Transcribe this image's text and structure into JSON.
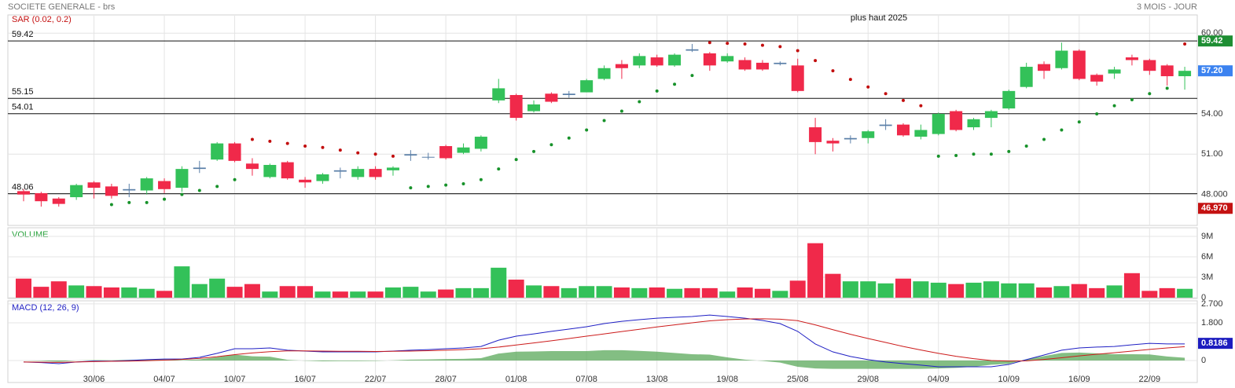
{
  "header": {
    "title": "SOCIETE GENERALE - brs",
    "period": "3 MOIS - JOUR"
  },
  "chart_data": [
    {
      "type": "candlestick",
      "categories": [
        null,
        null,
        null,
        null,
        "30/06",
        null,
        null,
        null,
        "04/07",
        null,
        null,
        null,
        "10/07",
        null,
        null,
        null,
        "16/07",
        null,
        null,
        null,
        "22/07",
        null,
        null,
        null,
        "28/07",
        null,
        null,
        null,
        "01/08",
        null,
        null,
        null,
        "07/08",
        null,
        null,
        null,
        "13/08",
        null,
        null,
        null,
        "19/08",
        null,
        null,
        null,
        "25/08",
        null,
        null,
        null,
        "29/08",
        null,
        null,
        null,
        "04/09",
        null,
        null,
        null,
        "10/09",
        null,
        null,
        null,
        "16/09",
        null,
        null,
        null,
        "22/09",
        null,
        null
      ],
      "open": [
        48.25,
        48.1,
        47.7,
        47.8,
        48.9,
        48.6,
        48.3,
        48.3,
        49.0,
        48.5,
        49.9,
        50.6,
        51.8,
        50.3,
        49.3,
        50.4,
        49.1,
        49.0,
        49.8,
        49.3,
        49.9,
        49.8,
        50.9,
        50.8,
        51.6,
        51.1,
        51.4,
        55.0,
        55.4,
        54.2,
        55.5,
        55.4,
        55.6,
        56.6,
        57.7,
        57.6,
        58.2,
        57.6,
        58.8,
        58.5,
        57.9,
        58.0,
        57.8,
        57.7,
        57.6,
        53.0,
        52.0,
        52.1,
        52.2,
        53.1,
        53.2,
        52.3,
        52.5,
        54.2,
        53.0,
        53.7,
        54.4,
        56.0,
        57.7,
        57.4,
        58.7,
        56.9,
        57.0,
        58.2,
        58.0,
        57.6,
        56.8
      ],
      "high": [
        48.4,
        48.2,
        47.8,
        48.8,
        49.0,
        48.8,
        48.8,
        49.3,
        49.2,
        50.1,
        50.5,
        51.9,
        51.9,
        50.7,
        50.3,
        50.5,
        49.3,
        49.6,
        50.0,
        50.1,
        50.1,
        50.1,
        51.3,
        51.1,
        51.7,
        51.8,
        52.4,
        56.6,
        55.5,
        55.0,
        55.6,
        55.7,
        56.6,
        57.6,
        58.0,
        58.5,
        58.4,
        58.5,
        59.2,
        58.6,
        58.5,
        58.2,
        58.0,
        57.9,
        58.1,
        53.7,
        52.2,
        52.4,
        52.8,
        53.6,
        53.3,
        53.2,
        54.1,
        54.3,
        53.7,
        54.3,
        55.8,
        57.8,
        57.9,
        59.3,
        58.8,
        57.0,
        57.5,
        58.4,
        58.1,
        57.7,
        57.5
      ],
      "low": [
        47.5,
        47.1,
        47.1,
        47.6,
        47.7,
        47.7,
        47.8,
        48.0,
        48.1,
        48.2,
        49.6,
        50.5,
        50.4,
        49.4,
        49.2,
        49.1,
        48.5,
        48.8,
        49.2,
        49.1,
        49.1,
        49.4,
        50.5,
        50.6,
        50.6,
        51.0,
        51.2,
        54.8,
        53.5,
        54.1,
        54.8,
        55.2,
        55.6,
        56.5,
        56.6,
        57.4,
        57.5,
        57.5,
        58.6,
        57.2,
        57.8,
        57.2,
        57.2,
        57.6,
        55.6,
        51.0,
        51.2,
        51.8,
        51.8,
        52.8,
        52.3,
        52.1,
        52.4,
        52.7,
        52.8,
        53.0,
        54.3,
        55.9,
        56.6,
        57.3,
        56.5,
        56.1,
        56.6,
        57.6,
        56.9,
        56.1,
        55.8
      ],
      "close": [
        48.0,
        47.5,
        47.3,
        48.7,
        48.5,
        47.9,
        48.4,
        49.2,
        48.4,
        49.9,
        50.0,
        51.8,
        50.5,
        49.9,
        50.2,
        49.2,
        48.9,
        49.5,
        49.7,
        49.9,
        49.3,
        50.0,
        51.0,
        50.8,
        50.7,
        51.5,
        52.3,
        55.9,
        53.7,
        54.7,
        54.9,
        55.5,
        56.5,
        57.4,
        57.4,
        58.3,
        57.6,
        58.4,
        58.7,
        57.6,
        58.3,
        57.3,
        57.3,
        57.8,
        55.7,
        51.9,
        51.8,
        52.2,
        52.7,
        53.2,
        52.4,
        52.8,
        54.0,
        52.8,
        53.6,
        54.2,
        55.7,
        57.5,
        57.2,
        58.7,
        56.6,
        56.4,
        57.3,
        58.0,
        57.2,
        56.8,
        57.2
      ],
      "up_color": "#33c159",
      "down_color": "#f0294a",
      "overlay": {
        "name": "SAR (0.02, 0.2)",
        "up_color": "#17922a",
        "down_color": "#c20d0d",
        "values": [
          null,
          null,
          null,
          null,
          null,
          47.25,
          47.4,
          47.4,
          47.65,
          48.0,
          48.3,
          48.6,
          49.1,
          52.1,
          51.96,
          51.8,
          51.6,
          51.5,
          51.3,
          51.1,
          51.0,
          50.85,
          48.5,
          48.6,
          48.7,
          48.8,
          49.1,
          49.9,
          50.6,
          51.2,
          51.7,
          52.2,
          52.8,
          53.5,
          54.2,
          54.9,
          55.7,
          56.2,
          56.85,
          59.3,
          59.25,
          59.2,
          59.1,
          59.0,
          58.7,
          57.96,
          57.2,
          56.56,
          56.0,
          55.5,
          55.0,
          54.6,
          50.85,
          50.9,
          51.0,
          51.0,
          51.2,
          51.6,
          52.1,
          52.8,
          53.4,
          54.0,
          54.6,
          55.05,
          55.5,
          55.9,
          59.2
        ]
      },
      "ylim": [
        45.7,
        61.3
      ],
      "yticks": [
        {
          "value": 48,
          "label": "48.000"
        },
        {
          "value": 51,
          "label": "51.00"
        },
        {
          "value": 54,
          "label": "54.00"
        },
        {
          "value": 60,
          "label": "60.00"
        }
      ],
      "levels": [
        59.42,
        55.15,
        54.01,
        48.06
      ],
      "annotation": "plus haut 2025",
      "markers": [
        {
          "value": 59.42,
          "color": "#1e8e33"
        },
        {
          "value": 57.2,
          "label": "57.20",
          "color": "#3b82f0"
        },
        {
          "value": 46.97,
          "label": "46.970",
          "color": "#c41212"
        }
      ],
      "grid": true
    },
    {
      "type": "bar",
      "title": "VOLUME",
      "values": [
        2800000,
        1600000,
        2400000,
        1800000,
        1700000,
        1500000,
        1500000,
        1300000,
        1000000,
        4600000,
        2000000,
        2800000,
        1600000,
        2000000,
        900000,
        1700000,
        1700000,
        900000,
        900000,
        900000,
        900000,
        1500000,
        1600000,
        900000,
        1200000,
        1400000,
        1400000,
        4400000,
        2650000,
        1800000,
        1700000,
        1400000,
        1700000,
        1700000,
        1500000,
        1400000,
        1500000,
        1300000,
        1400000,
        1400000,
        900000,
        1500000,
        1300000,
        1000000,
        2500000,
        8000000,
        3500000,
        2400000,
        2400000,
        2100000,
        2800000,
        2400000,
        2200000,
        2000000,
        2200000,
        2400000,
        2100000,
        2100000,
        1500000,
        1700000,
        2000000,
        1400000,
        1800000,
        3600000,
        1000000,
        1400000,
        1300000
      ],
      "ylim": [
        0,
        10150000
      ],
      "yticks": [
        0,
        {
          "value": 3000000,
          "label": "3M"
        },
        {
          "value": 6000000,
          "label": "6M"
        },
        {
          "value": 9000000,
          "label": "9M"
        }
      ],
      "grid": true
    },
    {
      "type": "line",
      "title": "MACD (12, 26, 9)",
      "series": [
        {
          "color": "#1f1fc4",
          "values": [
            -0.07,
            -0.1,
            -0.15,
            -0.07,
            -0.03,
            -0.03,
            0,
            0.04,
            0.07,
            0.07,
            0.15,
            0.34,
            0.56,
            0.56,
            0.6,
            0.49,
            0.45,
            0.41,
            0.41,
            0.41,
            0.41,
            0.45,
            0.49,
            0.52,
            0.56,
            0.6,
            0.67,
            0.97,
            1.16,
            1.27,
            1.39,
            1.5,
            1.61,
            1.76,
            1.87,
            1.95,
            2.02,
            2.06,
            2.1,
            2.17,
            2.1,
            2.02,
            1.91,
            1.76,
            1.39,
            0.79,
            0.41,
            0.19,
            0.04,
            -0.07,
            -0.15,
            -0.22,
            -0.3,
            -0.3,
            -0.3,
            -0.3,
            -0.19,
            0.04,
            0.26,
            0.49,
            0.6,
            0.64,
            0.67,
            0.75,
            0.82,
            0.79,
            0.79
          ]
        },
        {
          "color": "#cc1b1b",
          "values": [
            -0.07,
            -0.08,
            -0.09,
            -0.07,
            -0.05,
            -0.04,
            -0.03,
            -0.01,
            0.02,
            0.05,
            0.1,
            0.18,
            0.28,
            0.36,
            0.42,
            0.46,
            0.46,
            0.45,
            0.44,
            0.44,
            0.43,
            0.44,
            0.45,
            0.47,
            0.49,
            0.52,
            0.56,
            0.64,
            0.74,
            0.84,
            0.94,
            1.05,
            1.16,
            1.27,
            1.38,
            1.49,
            1.6,
            1.7,
            1.8,
            1.89,
            1.95,
            1.98,
            1.99,
            1.97,
            1.9,
            1.7,
            1.47,
            1.25,
            1.05,
            0.86,
            0.67,
            0.5,
            0.34,
            0.2,
            0.09,
            0.0,
            -0.03,
            -0.02,
            0.05,
            0.13,
            0.22,
            0.3,
            0.37,
            0.45,
            0.53,
            0.6,
            0.66
          ]
        }
      ],
      "histogram": {
        "color": "#5aa85a",
        "values": [
          0,
          -0.02,
          -0.06,
          0,
          0.02,
          0.01,
          0.03,
          0.05,
          0.05,
          0.02,
          0.05,
          0.16,
          0.28,
          0.2,
          0.18,
          0.03,
          -0.01,
          -0.04,
          -0.03,
          -0.03,
          -0.02,
          0.01,
          0.04,
          0.05,
          0.07,
          0.08,
          0.11,
          0.33,
          0.42,
          0.43,
          0.45,
          0.45,
          0.45,
          0.49,
          0.49,
          0.46,
          0.42,
          0.36,
          0.3,
          0.28,
          0.15,
          0.04,
          -0.02,
          -0.1,
          -0.3,
          -0.38,
          -0.4,
          -0.4,
          -0.4,
          -0.4,
          -0.4,
          -0.4,
          -0.38,
          -0.35,
          -0.3,
          -0.2,
          -0.16,
          0.06,
          0.21,
          0.36,
          0.38,
          0.34,
          0.3,
          0.3,
          0.29,
          0.19,
          0.13
        ]
      },
      "ylim": [
        -1.05,
        2.81
      ],
      "yticks": [
        0,
        {
          "value": 1.8,
          "label": "1.800"
        },
        {
          "value": 2.7,
          "label": "2.700"
        }
      ],
      "markers": [
        {
          "value": 0.8186,
          "color": "#1c1cbf"
        }
      ],
      "grid": true
    }
  ]
}
